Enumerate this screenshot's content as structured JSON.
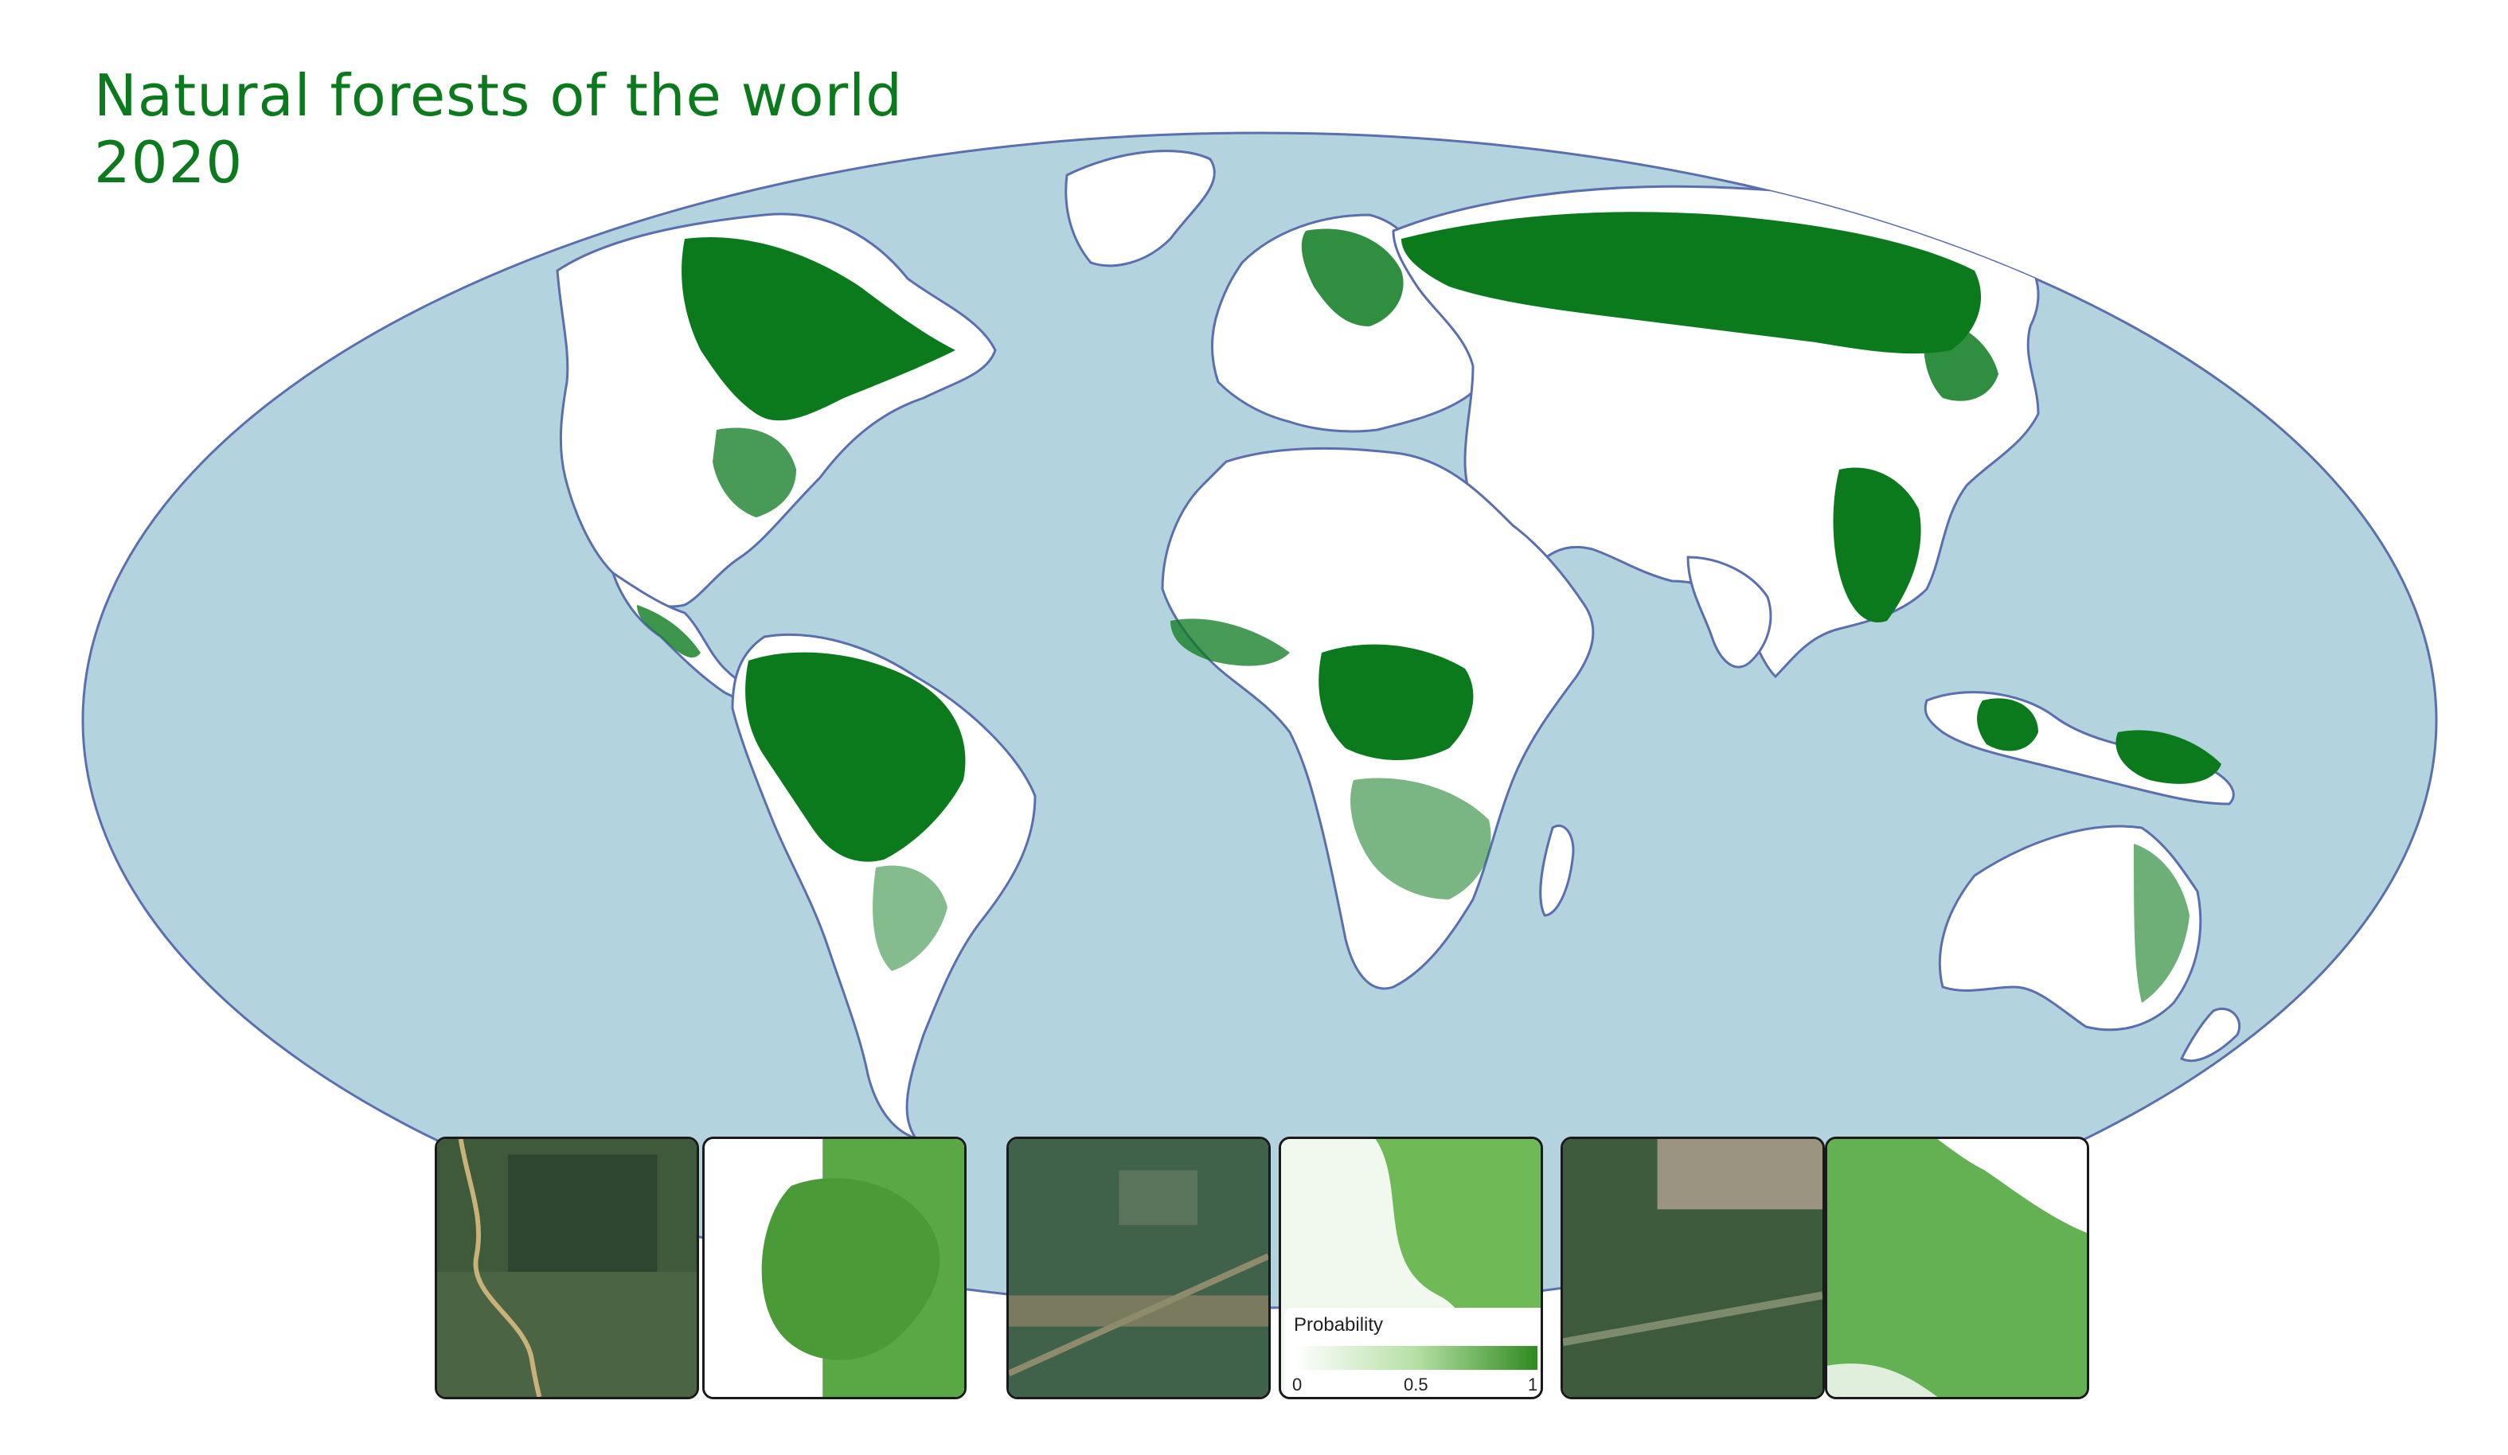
{
  "title": {
    "line1": "Natural forests of the world",
    "line2": "2020"
  },
  "colors": {
    "ocean": "#b3d3de",
    "land": "#ffffff",
    "coastline": "#5b6fae",
    "forest": "#0b7a1d",
    "title": "#0b7a1d"
  },
  "map": {
    "projection": "Mollweide",
    "layer": "Natural forests 2020"
  },
  "legend": {
    "title": "Probability",
    "ticks": [
      "0",
      "0.5",
      "1"
    ],
    "color_low": "#ffffff",
    "color_high": "#2f8a1f"
  },
  "thumbnails": [
    {
      "kind": "satellite-image",
      "region": "river-forest"
    },
    {
      "kind": "forest-probability",
      "region": "river-forest"
    },
    {
      "kind": "satellite-image",
      "region": "agricultural-forest"
    },
    {
      "kind": "forest-probability",
      "region": "agricultural-forest"
    },
    {
      "kind": "satellite-image",
      "region": "boreal-forest"
    },
    {
      "kind": "forest-probability",
      "region": "boreal-forest"
    }
  ]
}
